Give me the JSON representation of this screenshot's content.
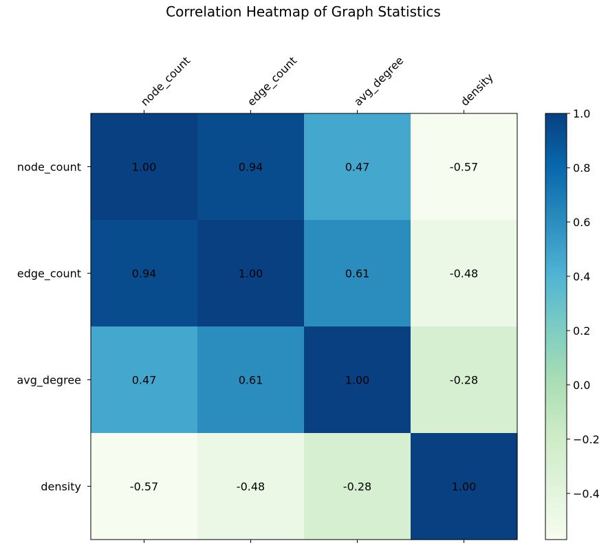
{
  "chart_data": {
    "type": "heatmap",
    "title": "Correlation Heatmap of Graph Statistics",
    "x_labels": [
      "node_count",
      "edge_count",
      "avg_degree",
      "density"
    ],
    "y_labels": [
      "node_count",
      "edge_count",
      "avg_degree",
      "density"
    ],
    "values": [
      [
        1.0,
        0.94,
        0.47,
        -0.57
      ],
      [
        0.94,
        1.0,
        0.61,
        -0.48
      ],
      [
        0.47,
        0.61,
        1.0,
        -0.28
      ],
      [
        -0.57,
        -0.48,
        -0.28,
        1.0
      ]
    ],
    "cell_labels": [
      [
        "1.00",
        "0.94",
        "0.47",
        "-0.57"
      ],
      [
        "0.94",
        "1.00",
        "0.61",
        "-0.48"
      ],
      [
        "0.47",
        "0.61",
        "1.00",
        "-0.28"
      ],
      [
        "-0.57",
        "-0.48",
        "-0.28",
        "1.00"
      ]
    ],
    "colormap": "GnBu",
    "colormap_stops": [
      "#f7fcf0",
      "#e0f3db",
      "#ccebc5",
      "#a8ddb5",
      "#7bccc4",
      "#4eb3d3",
      "#2b8cbe",
      "#0868ac",
      "#084081"
    ],
    "colorbar": {
      "vmin": -0.57,
      "vmax": 1.0,
      "ticks": [
        1.0,
        0.8,
        0.6,
        0.4,
        0.2,
        0.0,
        -0.2,
        -0.4
      ],
      "tick_labels": [
        "1.0",
        "0.8",
        "0.6",
        "0.4",
        "0.2",
        "0.0",
        "−0.2",
        "−0.4"
      ]
    },
    "x_axis_position": "top",
    "grid": false
  }
}
